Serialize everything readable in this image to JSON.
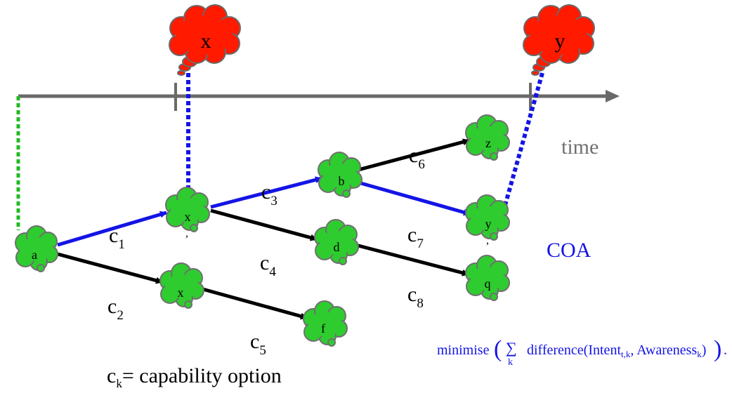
{
  "colors": {
    "timeline": "#6a6a6a",
    "green_cloud": "#2ecc2e",
    "green_outline": "#707070",
    "red_cloud": "#ff1a00",
    "blue": "#1414e6",
    "black": "#000000",
    "dotted_green": "#22bb22",
    "time_text": "#707070"
  },
  "intent_clouds": [
    {
      "id": "x",
      "label": "x"
    },
    {
      "id": "y",
      "label": "y"
    }
  ],
  "nodes": [
    {
      "id": "a",
      "label": "a"
    },
    {
      "id": "x1",
      "label": "x",
      "sub": ","
    },
    {
      "id": "x2",
      "label": "x"
    },
    {
      "id": "b",
      "label": "b"
    },
    {
      "id": "d",
      "label": "d"
    },
    {
      "id": "f",
      "label": "f"
    },
    {
      "id": "z",
      "label": "z"
    },
    {
      "id": "y",
      "label": "y",
      "sub": ","
    },
    {
      "id": "q",
      "label": "q"
    }
  ],
  "edges": [
    {
      "id": "c1",
      "base": "c",
      "sub": "1",
      "from": "a",
      "to": "x1",
      "color": "blue"
    },
    {
      "id": "c2",
      "base": "c",
      "sub": "2",
      "from": "a",
      "to": "x2",
      "color": "black"
    },
    {
      "id": "c3",
      "base": "c",
      "sub": "3",
      "from": "x1",
      "to": "b",
      "color": "blue"
    },
    {
      "id": "c4",
      "base": "c",
      "sub": "4",
      "from": "x1",
      "to": "d",
      "color": "black"
    },
    {
      "id": "c5",
      "base": "c",
      "sub": "5",
      "from": "x2",
      "to": "f",
      "color": "black"
    },
    {
      "id": "c6",
      "base": "c",
      "sub": "6",
      "from": "b",
      "to": "z",
      "color": "black"
    },
    {
      "id": "c7",
      "base": "c",
      "sub": "7",
      "from": "b",
      "to": "y",
      "color": "blue"
    },
    {
      "id": "c8",
      "base": "c",
      "sub": "8",
      "from": "d",
      "to": "q",
      "color": "black"
    }
  ],
  "labels": {
    "time": "time",
    "coa": "COA",
    "legend_base": "c",
    "legend_sub": "k",
    "legend_text": "= capability option"
  },
  "formula": {
    "prefix": "minimise",
    "open_paren": "(",
    "sigma": "∑",
    "sigma_sub": "k",
    "body": "difference(Intent",
    "intent_sub": "t,k",
    "middle": ", Awareness",
    "awareness_sub": "k",
    "close": ")",
    "close_paren": ")",
    "period": "."
  }
}
